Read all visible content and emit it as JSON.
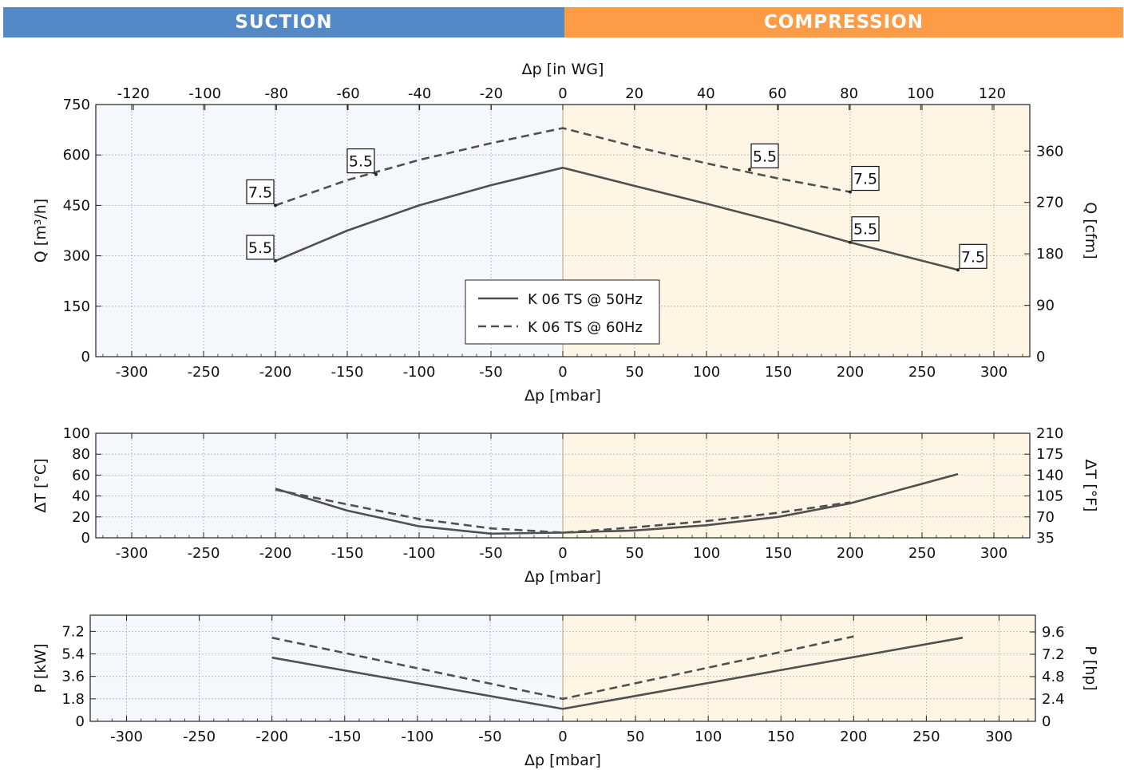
{
  "banners": {
    "suction": "SUCTION",
    "compression": "COMPRESSION"
  },
  "colors": {
    "suction_banner": "#5289c6",
    "compression_banner": "#fd9c45",
    "suction_bg": "#f4f8fd",
    "compression_bg": "#fff5e5",
    "line": "#505050"
  },
  "chart_data": [
    {
      "type": "line",
      "id": "flow",
      "xlabel": "Δp [mbar]",
      "x2label": "Δp [in WG]",
      "ylabel": "Q [m³/h]",
      "y2label": "Q [cfm]",
      "xlim": [
        -325,
        325
      ],
      "x2lim": [
        -130.5,
        130.5
      ],
      "ylim": [
        0,
        750
      ],
      "y2lim": [
        0,
        441.4
      ],
      "xticks": [
        -300,
        -250,
        -200,
        -150,
        -100,
        -50,
        0,
        50,
        100,
        150,
        200,
        250,
        300
      ],
      "x2ticks": [
        -120,
        -100,
        -80,
        -60,
        -40,
        -20,
        0,
        20,
        40,
        60,
        80,
        100,
        120
      ],
      "yticks": [
        0,
        150,
        300,
        450,
        600,
        750
      ],
      "y2ticks": [
        0,
        90,
        180,
        270,
        360
      ],
      "grid": true,
      "legend": {
        "position": "center"
      },
      "series": [
        {
          "name": "K 06 TS @ 50Hz",
          "dash": "solid",
          "x": [
            -200,
            -150,
            -100,
            -50,
            0,
            50,
            100,
            150,
            200,
            275
          ],
          "y": [
            285,
            375,
            450,
            510,
            562,
            508,
            455,
            400,
            340,
            258
          ]
        },
        {
          "name": "K 06 TS @ 60Hz",
          "dash": "dashed",
          "x": [
            -200,
            -150,
            -100,
            -50,
            0,
            50,
            100,
            150,
            200
          ],
          "y": [
            450,
            525,
            585,
            635,
            680,
            625,
            575,
            530,
            490
          ]
        }
      ],
      "annotations": [
        {
          "text": "7.5",
          "x": -200,
          "y": 450,
          "side": "left"
        },
        {
          "text": "5.5",
          "x": -130,
          "y": 542,
          "side": "left"
        },
        {
          "text": "5.5",
          "x": -200,
          "y": 285,
          "side": "left"
        },
        {
          "text": "5.5",
          "x": 130,
          "y": 557,
          "side": "right"
        },
        {
          "text": "7.5",
          "x": 200,
          "y": 490,
          "side": "right"
        },
        {
          "text": "5.5",
          "x": 200,
          "y": 340,
          "side": "right"
        },
        {
          "text": "7.5",
          "x": 275,
          "y": 258,
          "side": "right"
        }
      ]
    },
    {
      "type": "line",
      "id": "temperature",
      "xlabel": "Δp [mbar]",
      "ylabel": "ΔT [°C]",
      "y2label": "ΔT [°F]",
      "xlim": [
        -325,
        325
      ],
      "ylim": [
        0,
        100
      ],
      "y2lim": [
        35,
        210
      ],
      "xticks": [
        -300,
        -250,
        -200,
        -150,
        -100,
        -50,
        0,
        50,
        100,
        150,
        200,
        250,
        300
      ],
      "yticks": [
        0,
        20,
        40,
        60,
        80,
        100
      ],
      "y2ticks": [
        35,
        70,
        105,
        140,
        175,
        210
      ],
      "grid": true,
      "series": [
        {
          "name": "K 06 TS @ 50Hz",
          "dash": "solid",
          "x": [
            -200,
            -150,
            -100,
            -50,
            0,
            50,
            100,
            150,
            200,
            275
          ],
          "y": [
            47,
            26,
            11,
            4,
            5,
            7,
            12,
            20,
            33,
            61
          ]
        },
        {
          "name": "K 06 TS @ 60Hz",
          "dash": "dashed",
          "x": [
            -200,
            -150,
            -100,
            -50,
            0,
            50,
            100,
            150,
            200
          ],
          "y": [
            46,
            32,
            18,
            9,
            5,
            10,
            16,
            24,
            34
          ]
        }
      ]
    },
    {
      "type": "line",
      "id": "power",
      "xlabel": "Δp [mbar]",
      "ylabel": "P [kW]",
      "y2label": "P [hp]",
      "xlim": [
        -325,
        325
      ],
      "ylim": [
        0,
        8.5
      ],
      "y2lim": [
        0,
        11.4
      ],
      "xticks": [
        -300,
        -250,
        -200,
        -150,
        -100,
        -50,
        0,
        50,
        100,
        150,
        200,
        250,
        300
      ],
      "yticks": [
        0,
        1.8,
        3.6,
        5.4,
        7.2
      ],
      "y2ticks": [
        0,
        2.4,
        4.8,
        7.2,
        9.6
      ],
      "grid": true,
      "series": [
        {
          "name": "K 06 TS @ 50Hz",
          "dash": "solid",
          "x": [
            -200,
            0,
            275
          ],
          "y": [
            5.1,
            1.0,
            6.7
          ]
        },
        {
          "name": "K 06 TS @ 60Hz",
          "dash": "dashed",
          "x": [
            -200,
            0,
            200
          ],
          "y": [
            6.7,
            1.8,
            6.8
          ]
        }
      ]
    }
  ]
}
